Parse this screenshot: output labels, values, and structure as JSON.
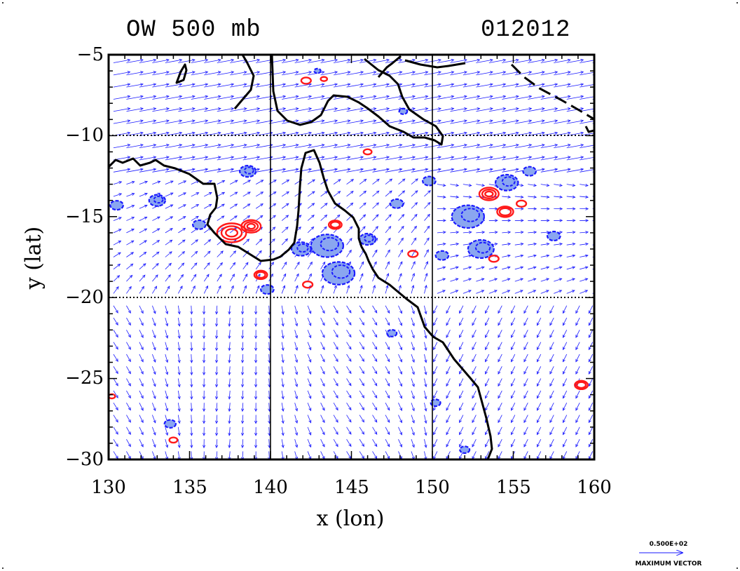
{
  "header": {
    "title": "OW 500 mb",
    "date": "012012"
  },
  "axes": {
    "xlabel": "x (lon)",
    "ylabel": "y (lat)",
    "xticks": [
      "130",
      "135",
      "140",
      "145",
      "150",
      "155",
      "160"
    ],
    "yticks": [
      "−5",
      "−10",
      "−15",
      "−20",
      "−25",
      "−30"
    ]
  },
  "legend": {
    "value": "0.500E+02",
    "label": "MAXIMUM VECTOR"
  },
  "colors": {
    "vectors": "#1a1aff",
    "negative_ow": "#1a1aff",
    "negative_fill": "#8aa6f0",
    "positive_ow": "#ff1a1a",
    "coast": "#000000"
  },
  "chart_data": {
    "type": "heatmap",
    "title": "OW 500 mb",
    "subtitle": "012012",
    "xlabel": "x (lon)",
    "ylabel": "y (lat)",
    "xlim": [
      130,
      160
    ],
    "ylim": [
      -30,
      -5
    ],
    "gridlines": {
      "x": [
        140,
        150
      ],
      "y": [
        -10,
        -20
      ]
    },
    "vector_key": {
      "value": 50,
      "text": "0.500E+02",
      "label": "MAXIMUM VECTOR"
    },
    "positive_ow_features": [
      {
        "lon": 137.6,
        "lat": -16.0,
        "r": 0.9
      },
      {
        "lon": 138.8,
        "lat": -15.6,
        "r": 0.6
      },
      {
        "lon": 139.4,
        "lat": -18.6,
        "r": 0.4
      },
      {
        "lon": 144.0,
        "lat": -15.5,
        "r": 0.4
      },
      {
        "lon": 148.8,
        "lat": -17.3,
        "r": 0.3
      },
      {
        "lon": 153.5,
        "lat": -13.6,
        "r": 0.6
      },
      {
        "lon": 154.5,
        "lat": -14.7,
        "r": 0.5
      },
      {
        "lon": 155.5,
        "lat": -14.2,
        "r": 0.3
      },
      {
        "lon": 153.8,
        "lat": -17.6,
        "r": 0.3
      },
      {
        "lon": 159.2,
        "lat": -25.4,
        "r": 0.4
      },
      {
        "lon": 134.0,
        "lat": -28.8,
        "r": 0.25
      },
      {
        "lon": 142.2,
        "lat": -6.6,
        "r": 0.3
      },
      {
        "lon": 143.3,
        "lat": -6.5,
        "r": 0.2
      },
      {
        "lon": 146.0,
        "lat": -11.0,
        "r": 0.25
      },
      {
        "lon": 142.3,
        "lat": -19.2,
        "r": 0.3
      },
      {
        "lon": 130.2,
        "lat": -26.1,
        "r": 0.2
      }
    ],
    "negative_ow_features": [
      {
        "lon": 138.6,
        "lat": -12.2,
        "r": 0.5
      },
      {
        "lon": 135.6,
        "lat": -15.5,
        "r": 0.4
      },
      {
        "lon": 133.0,
        "lat": -14.0,
        "r": 0.5
      },
      {
        "lon": 130.5,
        "lat": -14.3,
        "r": 0.4
      },
      {
        "lon": 143.5,
        "lat": -16.8,
        "r": 1.0
      },
      {
        "lon": 144.2,
        "lat": -18.5,
        "r": 1.0
      },
      {
        "lon": 141.9,
        "lat": -17.0,
        "r": 0.6
      },
      {
        "lon": 146.0,
        "lat": -16.4,
        "r": 0.5
      },
      {
        "lon": 147.8,
        "lat": -14.2,
        "r": 0.4
      },
      {
        "lon": 149.8,
        "lat": -12.8,
        "r": 0.4
      },
      {
        "lon": 152.2,
        "lat": -15.0,
        "r": 1.0
      },
      {
        "lon": 153.0,
        "lat": -17.0,
        "r": 0.8
      },
      {
        "lon": 154.6,
        "lat": -12.9,
        "r": 0.7
      },
      {
        "lon": 156.0,
        "lat": -12.2,
        "r": 0.4
      },
      {
        "lon": 150.6,
        "lat": -17.4,
        "r": 0.4
      },
      {
        "lon": 157.5,
        "lat": -16.2,
        "r": 0.4
      },
      {
        "lon": 139.8,
        "lat": -19.5,
        "r": 0.4
      },
      {
        "lon": 147.5,
        "lat": -22.2,
        "r": 0.3
      },
      {
        "lon": 150.2,
        "lat": -26.5,
        "r": 0.3
      },
      {
        "lon": 152.0,
        "lat": -29.4,
        "r": 0.3
      },
      {
        "lon": 133.8,
        "lat": -27.8,
        "r": 0.35
      },
      {
        "lon": 142.9,
        "lat": -6.0,
        "r": 0.2
      },
      {
        "lon": 148.2,
        "lat": -8.5,
        "r": 0.25
      }
    ]
  }
}
